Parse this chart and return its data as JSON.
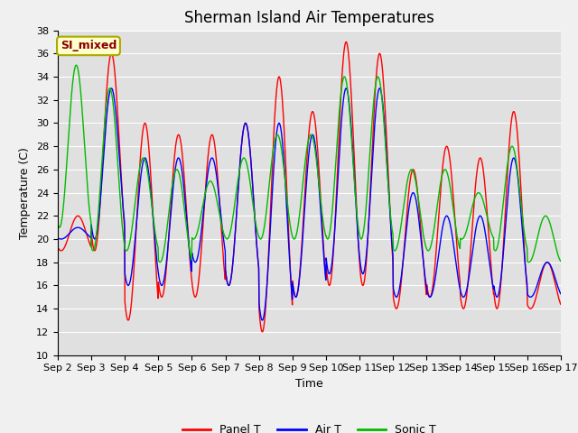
{
  "title": "Sherman Island Air Temperatures",
  "xlabel": "Time",
  "ylabel": "Temperature (C)",
  "annotation": "SI_mixed",
  "ylim": [
    10,
    38
  ],
  "n_days": 15,
  "x_tick_labels": [
    "Sep 2",
    "Sep 3",
    "Sep 4",
    "Sep 5",
    "Sep 6",
    "Sep 7",
    "Sep 8",
    "Sep 9",
    "Sep 10",
    "Sep 11",
    "Sep 12",
    "Sep 13",
    "Sep 14",
    "Sep 15",
    "Sep 16",
    "Sep 17"
  ],
  "legend_labels": [
    "Panel T",
    "Air T",
    "Sonic T"
  ],
  "colors": {
    "panel": "#ff0000",
    "air": "#0000ff",
    "sonic": "#00bb00"
  },
  "plot_bg_color": "#e0e0e0",
  "fig_bg_color": "#f0f0f0",
  "title_fontsize": 12,
  "axis_fontsize": 9,
  "tick_fontsize": 8,
  "panel_peaks": [
    22,
    36,
    30,
    29,
    29,
    30,
    34,
    31,
    37,
    36,
    26,
    28,
    27,
    31,
    18
  ],
  "panel_troughs": [
    19,
    19,
    13,
    15,
    15,
    16,
    12,
    15,
    16,
    16,
    14,
    15,
    14,
    14,
    14
  ],
  "air_peaks": [
    21,
    33,
    27,
    27,
    27,
    30,
    30,
    29,
    33,
    33,
    24,
    22,
    22,
    27,
    18
  ],
  "air_troughs": [
    20,
    20,
    16,
    16,
    18,
    16,
    13,
    15,
    17,
    17,
    15,
    15,
    15,
    15,
    15
  ],
  "sonic_peaks": [
    35,
    33,
    27,
    26,
    25,
    27,
    29,
    29,
    34,
    34,
    26,
    26,
    24,
    28,
    22
  ],
  "sonic_troughs": [
    21,
    19,
    19,
    18,
    20,
    20,
    20,
    20,
    20,
    20,
    19,
    19,
    20,
    19,
    18
  ],
  "peak_phase": 0.6,
  "pts_per_day": 96
}
